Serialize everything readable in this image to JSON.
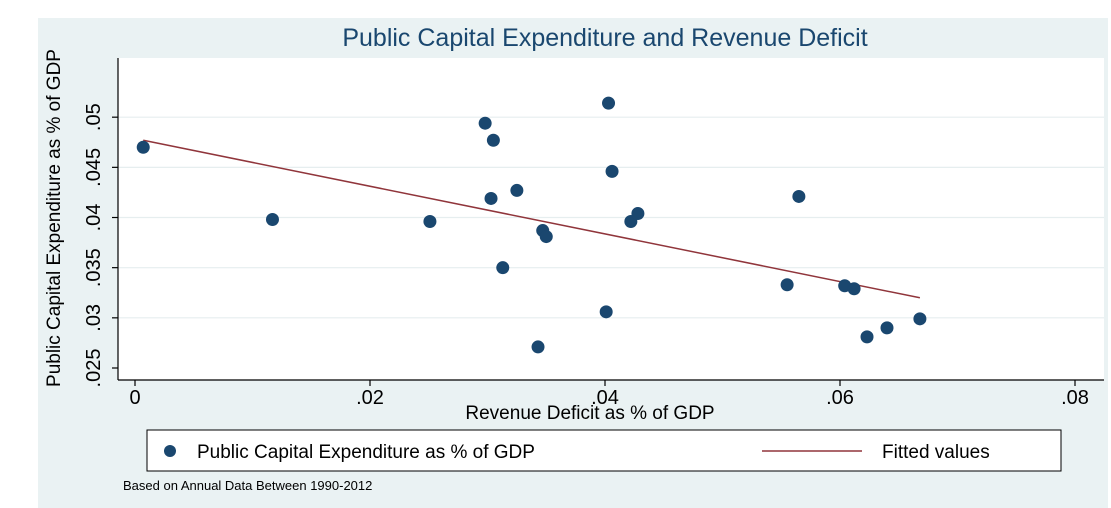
{
  "figure_caption": "",
  "chart_data": {
    "type": "scatter",
    "title": "Public Capital Expenditure and Revenue Deficit",
    "xlabel": "Revenue Deficit as % of GDP",
    "ylabel": "Public Capital Expenditure as % of GDP",
    "xlim": [
      0,
      0.08
    ],
    "ylim": [
      0.025,
      0.055
    ],
    "x_ticks": [
      {
        "value": 0,
        "label": "0"
      },
      {
        "value": 0.02,
        "label": ".02"
      },
      {
        "value": 0.04,
        "label": ".04"
      },
      {
        "value": 0.06,
        "label": ".06"
      },
      {
        "value": 0.08,
        "label": ".08"
      }
    ],
    "y_ticks": [
      {
        "value": 0.025,
        "label": ".025"
      },
      {
        "value": 0.03,
        "label": ".03"
      },
      {
        "value": 0.035,
        "label": ".035"
      },
      {
        "value": 0.04,
        "label": ".04"
      },
      {
        "value": 0.045,
        "label": ".045"
      },
      {
        "value": 0.05,
        "label": ".05"
      }
    ],
    "grid": "horizontal",
    "legend_position": "bottom",
    "series": [
      {
        "name": "Public Capital Expenditure as % of GDP",
        "kind": "scatter",
        "color": "#1a476f",
        "points": [
          {
            "x": 0.0007,
            "y": 0.047
          },
          {
            "x": 0.0117,
            "y": 0.0398
          },
          {
            "x": 0.0251,
            "y": 0.0396
          },
          {
            "x": 0.0298,
            "y": 0.0494
          },
          {
            "x": 0.0303,
            "y": 0.0419
          },
          {
            "x": 0.0305,
            "y": 0.0477
          },
          {
            "x": 0.0313,
            "y": 0.035
          },
          {
            "x": 0.0325,
            "y": 0.0427
          },
          {
            "x": 0.0343,
            "y": 0.0271
          },
          {
            "x": 0.0347,
            "y": 0.0387
          },
          {
            "x": 0.035,
            "y": 0.0381
          },
          {
            "x": 0.0401,
            "y": 0.0306
          },
          {
            "x": 0.0403,
            "y": 0.0514
          },
          {
            "x": 0.0406,
            "y": 0.0446
          },
          {
            "x": 0.0422,
            "y": 0.0396
          },
          {
            "x": 0.0428,
            "y": 0.0404
          },
          {
            "x": 0.0555,
            "y": 0.0333
          },
          {
            "x": 0.0565,
            "y": 0.0421
          },
          {
            "x": 0.0604,
            "y": 0.0332
          },
          {
            "x": 0.0612,
            "y": 0.0329
          },
          {
            "x": 0.0623,
            "y": 0.0281
          },
          {
            "x": 0.064,
            "y": 0.029
          },
          {
            "x": 0.0668,
            "y": 0.0299
          }
        ]
      },
      {
        "name": "Fitted values",
        "kind": "line",
        "color": "#90353b",
        "points": [
          {
            "x": 0.0007,
            "y": 0.0477
          },
          {
            "x": 0.0668,
            "y": 0.032
          }
        ]
      }
    ],
    "note": "Based on Annual Data Between 1990-2012"
  }
}
